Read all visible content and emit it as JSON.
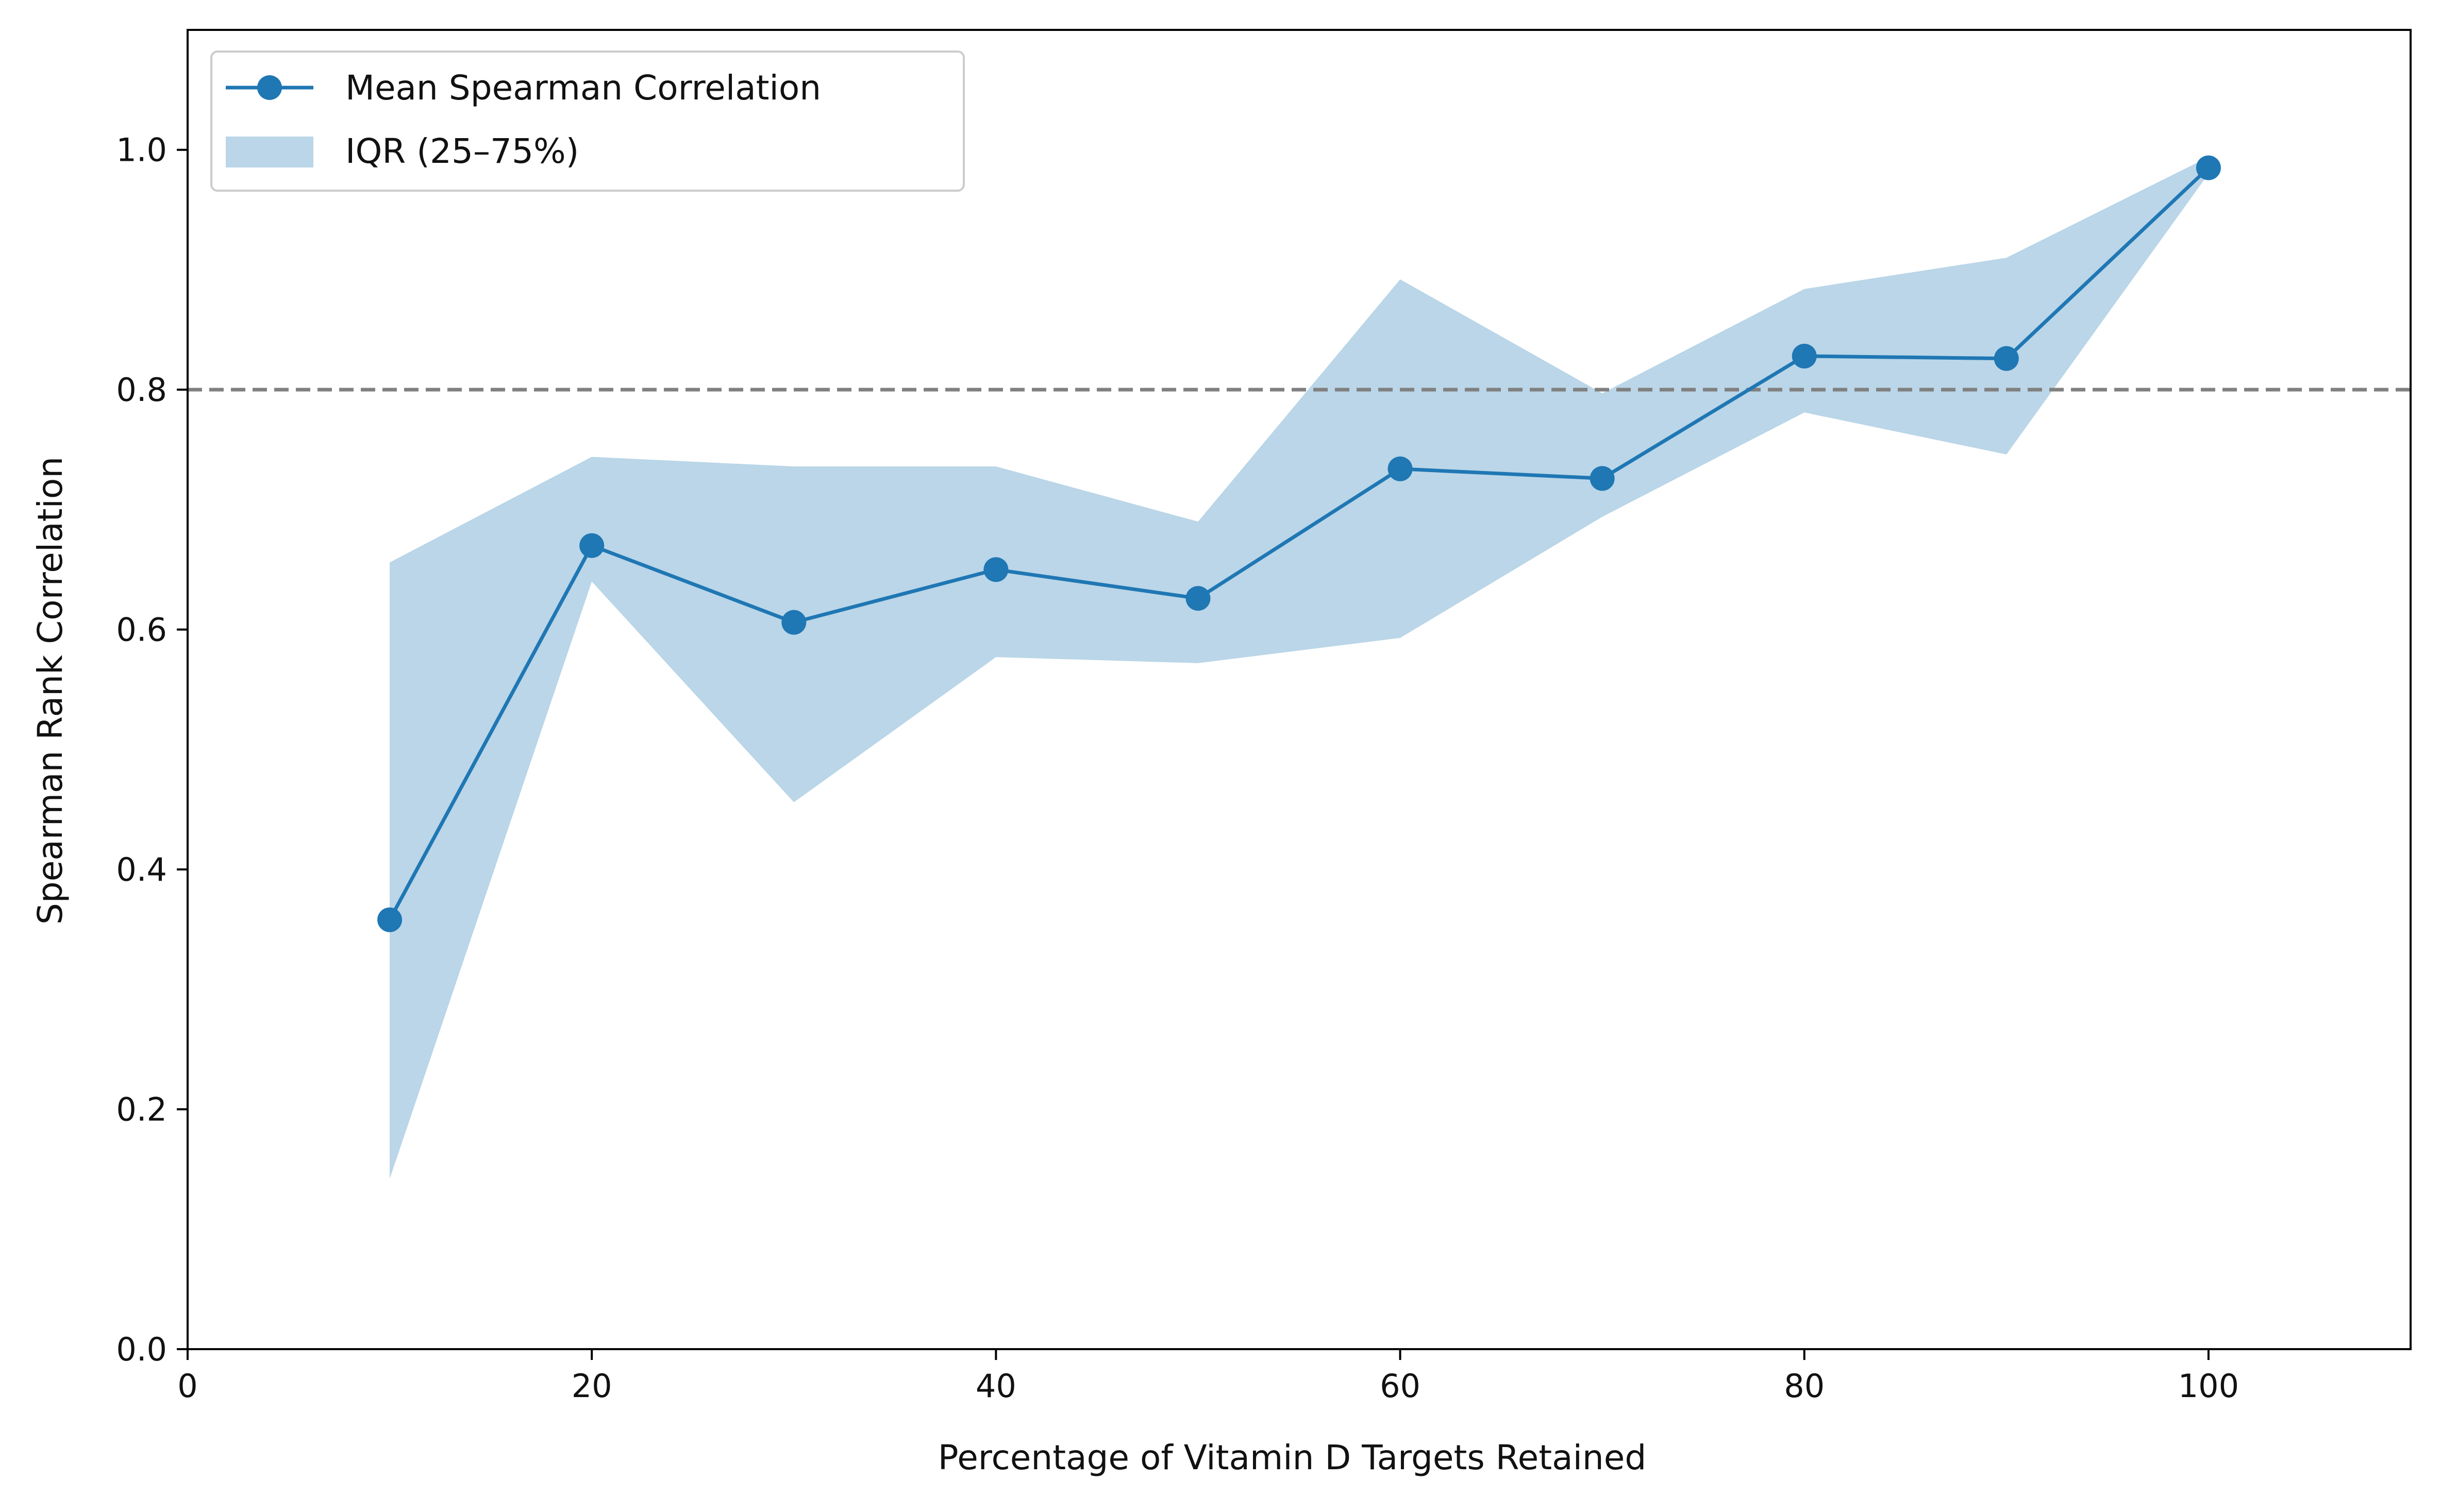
{
  "colors": {
    "line": "#1f77b4",
    "band": "#bad6e8",
    "reference": "#808080",
    "axis": "#000000"
  },
  "chart_data": {
    "type": "line",
    "title": "",
    "xlabel": "Percentage of Vitamin D Targets Retained",
    "ylabel": "Spearman Rank Correlation",
    "xlim": [
      0,
      110
    ],
    "ylim": [
      0,
      1.1
    ],
    "xticks": [
      0,
      20,
      40,
      60,
      80,
      100
    ],
    "yticks": [
      0.0,
      0.2,
      0.4,
      0.6,
      0.8,
      1.0
    ],
    "xtick_labels": [
      "0",
      "20",
      "40",
      "60",
      "80",
      "100"
    ],
    "ytick_labels": [
      "0.0",
      "0.2",
      "0.4",
      "0.6",
      "0.8",
      "1.0"
    ],
    "grid": false,
    "legend_position": "top-left",
    "reference_line": {
      "y": 0.8,
      "style": "dashed"
    },
    "x": [
      10,
      20,
      30,
      40,
      50,
      60,
      70,
      80,
      90,
      100
    ],
    "series": [
      {
        "name": "Mean Spearman Correlation",
        "values": [
          0.358,
          0.67,
          0.606,
          0.65,
          0.626,
          0.734,
          0.726,
          0.828,
          0.826,
          0.985
        ]
      }
    ],
    "band": {
      "name": "IQR (25–75%)",
      "lower": [
        0.142,
        0.64,
        0.456,
        0.577,
        0.572,
        0.593,
        0.694,
        0.781,
        0.746,
        0.98
      ],
      "upper": [
        0.656,
        0.744,
        0.736,
        0.736,
        0.69,
        0.892,
        0.797,
        0.884,
        0.91,
        0.994
      ]
    }
  }
}
